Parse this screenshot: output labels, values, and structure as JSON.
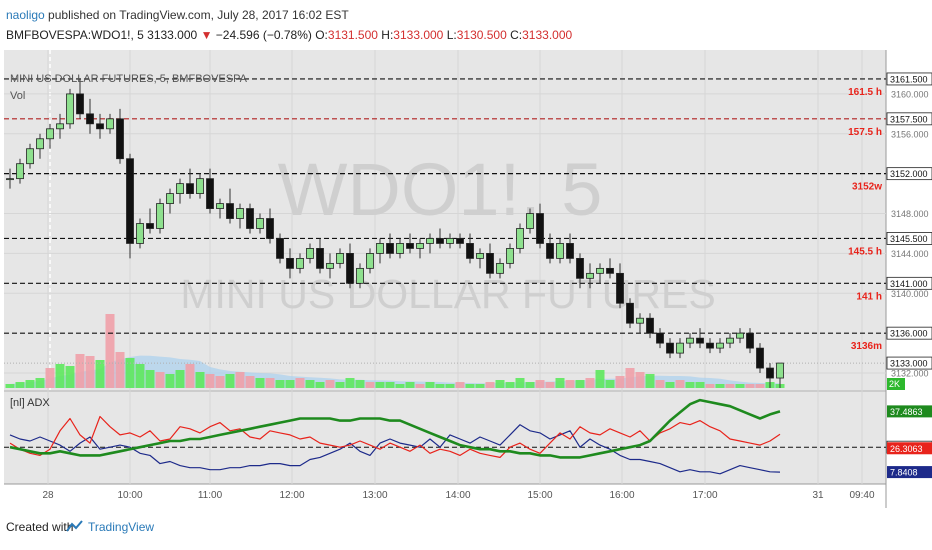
{
  "header": {
    "author": "naoligo",
    "published_text": "published on TradingView.com, July 28, 2017 16:02 EST",
    "symbol": "BMFBOVESPA:WDO1!, 5",
    "last": "3133.000",
    "change": "−24.596 (−0.78%)",
    "ohlc": {
      "o_label": "O:",
      "o": "3131.500",
      "h_label": "H:",
      "h": "3133.000",
      "l_label": "L:",
      "l": "3130.500",
      "c_label": "C:",
      "c": "3133.000"
    }
  },
  "legend": {
    "main_title": "MINI US DOLLAR FUTURES, 5, BMFBOVESPA",
    "vol_label": "Vol",
    "adx_label": "[nl] ADX"
  },
  "watermark": {
    "line1": "WDO1!, 5",
    "line2": "MINI US DOLLAR FUTURES"
  },
  "footer": {
    "created_with": "Created with",
    "brand": "TradingView"
  },
  "colors": {
    "up": "#8ee08e",
    "down": "#111111",
    "vol_up": "#5de85d",
    "vol_down": "#f0a0a8",
    "adx": "#1e8a1e",
    "di_plus": "#e8231b",
    "di_minus": "#1d2a8a",
    "level_red": "#e8231b",
    "pane_bg": "#e6e6e6"
  },
  "chart_data": [
    {
      "type": "candlestick",
      "title": "MINI US DOLLAR FUTURES, 5, BMFBOVESPA",
      "x_ticks": [
        "28",
        "10:00",
        "11:00",
        "12:00",
        "13:00",
        "14:00",
        "15:00",
        "16:00",
        "17:00",
        "31",
        "09:40"
      ],
      "ylim": [
        3130.5,
        3163.0
      ],
      "y_ticks": [
        "3160.000",
        "3156.000",
        "3148.000",
        "3144.000",
        "3140.000",
        "3132.000"
      ],
      "price_labels": [
        {
          "value": 3161.5,
          "text": "3161.500",
          "level": "161.5 h"
        },
        {
          "value": 3157.5,
          "text": "3157.500",
          "level": "157.5 h"
        },
        {
          "value": 3152.0,
          "text": "3152.000",
          "level": "3152w"
        },
        {
          "value": 3145.5,
          "text": "3145.500",
          "level": "145.5 h"
        },
        {
          "value": 3141.0,
          "text": "3141.000",
          "level": "141 h"
        },
        {
          "value": 3136.0,
          "text": "3136.000",
          "level": "3136m"
        },
        {
          "value": 3133.0,
          "text": "3133.000",
          "level": ""
        }
      ],
      "volume_tag": "2K",
      "candles": [
        [
          3151.5,
          3152.5,
          3150.5,
          3151.5
        ],
        [
          3151.5,
          3153.5,
          3151,
          3153
        ],
        [
          3153,
          3155,
          3152.5,
          3154.5
        ],
        [
          3154.5,
          3156,
          3153.5,
          3155.5
        ],
        [
          3155.5,
          3157,
          3154.5,
          3156.5
        ],
        [
          3156.5,
          3158,
          3155.5,
          3157
        ],
        [
          3157,
          3160.5,
          3156.5,
          3160
        ],
        [
          3160,
          3161.5,
          3157.5,
          3158
        ],
        [
          3158,
          3159.5,
          3156,
          3157
        ],
        [
          3157,
          3158,
          3155.5,
          3156.5
        ],
        [
          3156.5,
          3158,
          3156,
          3157.5
        ],
        [
          3157.5,
          3158.5,
          3153,
          3153.5
        ],
        [
          3153.5,
          3154,
          3143.5,
          3145
        ],
        [
          3145,
          3147.5,
          3144.5,
          3147
        ],
        [
          3147,
          3148.5,
          3146,
          3146.5
        ],
        [
          3146.5,
          3149.5,
          3146,
          3149
        ],
        [
          3149,
          3150.5,
          3148,
          3150
        ],
        [
          3150,
          3151.5,
          3149,
          3151
        ],
        [
          3151,
          3152.5,
          3149.5,
          3150
        ],
        [
          3150,
          3152,
          3149.5,
          3151.5
        ],
        [
          3151.5,
          3152.5,
          3148,
          3148.5
        ],
        [
          3148.5,
          3149.5,
          3147.5,
          3149
        ],
        [
          3149,
          3150.5,
          3147,
          3147.5
        ],
        [
          3147.5,
          3149,
          3146.5,
          3148.5
        ],
        [
          3148.5,
          3149,
          3146,
          3146.5
        ],
        [
          3146.5,
          3148,
          3146,
          3147.5
        ],
        [
          3147.5,
          3148.5,
          3145,
          3145.5
        ],
        [
          3145.5,
          3146,
          3143,
          3143.5
        ],
        [
          3143.5,
          3144.5,
          3141.5,
          3142.5
        ],
        [
          3142.5,
          3144,
          3142,
          3143.5
        ],
        [
          3143.5,
          3145,
          3143,
          3144.5
        ],
        [
          3144.5,
          3145.5,
          3142,
          3142.5
        ],
        [
          3142.5,
          3144,
          3141.5,
          3143
        ],
        [
          3143,
          3144.5,
          3142.5,
          3144
        ],
        [
          3144,
          3145,
          3140.5,
          3141
        ],
        [
          3141,
          3143,
          3140.5,
          3142.5
        ],
        [
          3142.5,
          3144.5,
          3142,
          3144
        ],
        [
          3144,
          3145.5,
          3143,
          3145
        ],
        [
          3145,
          3146,
          3143.5,
          3144
        ],
        [
          3144,
          3145.5,
          3143.5,
          3145
        ],
        [
          3145,
          3146,
          3144,
          3144.5
        ],
        [
          3144.5,
          3145.5,
          3143.5,
          3145
        ],
        [
          3145,
          3146,
          3144,
          3145.5
        ],
        [
          3145.5,
          3146.5,
          3144.5,
          3145
        ],
        [
          3145,
          3146,
          3144.5,
          3145.5
        ],
        [
          3145.5,
          3146,
          3144.5,
          3145
        ],
        [
          3145,
          3146,
          3143,
          3143.5
        ],
        [
          3143.5,
          3144.5,
          3142.5,
          3144
        ],
        [
          3144,
          3145,
          3141.5,
          3142
        ],
        [
          3142,
          3143.5,
          3141.5,
          3143
        ],
        [
          3143,
          3145,
          3142.5,
          3144.5
        ],
        [
          3144.5,
          3147,
          3144,
          3146.5
        ],
        [
          3146.5,
          3148.5,
          3146,
          3148
        ],
        [
          3148,
          3149,
          3144.5,
          3145
        ],
        [
          3145,
          3146,
          3143,
          3143.5
        ],
        [
          3143.5,
          3145.5,
          3143,
          3145
        ],
        [
          3145,
          3146,
          3143,
          3143.5
        ],
        [
          3143.5,
          3144,
          3140.5,
          3141.5
        ],
        [
          3141.5,
          3143,
          3140.5,
          3142
        ],
        [
          3142,
          3143,
          3141,
          3142.5
        ],
        [
          3142.5,
          3143.5,
          3141.5,
          3142
        ],
        [
          3142,
          3143,
          3138.5,
          3139
        ],
        [
          3139,
          3139.5,
          3136.5,
          3137
        ],
        [
          3137,
          3138,
          3136,
          3137.5
        ],
        [
          3137.5,
          3138,
          3135.5,
          3136
        ],
        [
          3136,
          3136.5,
          3134.5,
          3135
        ],
        [
          3135,
          3135.5,
          3133.5,
          3134
        ],
        [
          3134,
          3135.5,
          3133.5,
          3135
        ],
        [
          3135,
          3136,
          3134.5,
          3135.5
        ],
        [
          3135.5,
          3136.5,
          3134.5,
          3135
        ],
        [
          3135,
          3135.5,
          3134,
          3134.5
        ],
        [
          3134.5,
          3135.5,
          3134,
          3135
        ],
        [
          3135,
          3136,
          3134.5,
          3135.5
        ],
        [
          3135.5,
          3136.5,
          3135,
          3136
        ],
        [
          3136,
          3136.5,
          3134,
          3134.5
        ],
        [
          3134.5,
          3135,
          3132,
          3132.5
        ],
        [
          3132.5,
          3133,
          3130.5,
          3131.5
        ],
        [
          3131.5,
          3133,
          3130.5,
          3133
        ]
      ],
      "volumes": [
        [
          0.2,
          1
        ],
        [
          0.3,
          1
        ],
        [
          0.4,
          1
        ],
        [
          0.5,
          1
        ],
        [
          1.0,
          0
        ],
        [
          1.2,
          1
        ],
        [
          1.1,
          1
        ],
        [
          1.7,
          0
        ],
        [
          1.6,
          0
        ],
        [
          1.4,
          1
        ],
        [
          3.7,
          0
        ],
        [
          1.8,
          0
        ],
        [
          1.5,
          1
        ],
        [
          1.2,
          1
        ],
        [
          0.9,
          1
        ],
        [
          0.8,
          0
        ],
        [
          0.7,
          1
        ],
        [
          0.9,
          1
        ],
        [
          1.2,
          0
        ],
        [
          0.8,
          1
        ],
        [
          0.7,
          0
        ],
        [
          0.6,
          0
        ],
        [
          0.7,
          1
        ],
        [
          0.8,
          0
        ],
        [
          0.6,
          0
        ],
        [
          0.5,
          1
        ],
        [
          0.5,
          0
        ],
        [
          0.4,
          1
        ],
        [
          0.4,
          1
        ],
        [
          0.5,
          0
        ],
        [
          0.4,
          1
        ],
        [
          0.3,
          1
        ],
        [
          0.4,
          0
        ],
        [
          0.3,
          1
        ],
        [
          0.5,
          1
        ],
        [
          0.4,
          1
        ],
        [
          0.3,
          0
        ],
        [
          0.3,
          1
        ],
        [
          0.3,
          1
        ],
        [
          0.2,
          1
        ],
        [
          0.3,
          1
        ],
        [
          0.2,
          0
        ],
        [
          0.3,
          1
        ],
        [
          0.2,
          1
        ],
        [
          0.2,
          1
        ],
        [
          0.3,
          0
        ],
        [
          0.2,
          1
        ],
        [
          0.2,
          1
        ],
        [
          0.3,
          0
        ],
        [
          0.4,
          1
        ],
        [
          0.3,
          1
        ],
        [
          0.5,
          1
        ],
        [
          0.3,
          1
        ],
        [
          0.4,
          0
        ],
        [
          0.3,
          0
        ],
        [
          0.5,
          1
        ],
        [
          0.4,
          0
        ],
        [
          0.4,
          1
        ],
        [
          0.5,
          0
        ],
        [
          0.9,
          1
        ],
        [
          0.4,
          1
        ],
        [
          0.6,
          0
        ],
        [
          1.0,
          0
        ],
        [
          0.8,
          0
        ],
        [
          0.7,
          1
        ],
        [
          0.4,
          0
        ],
        [
          0.3,
          1
        ],
        [
          0.4,
          0
        ],
        [
          0.3,
          1
        ],
        [
          0.3,
          1
        ],
        [
          0.2,
          0
        ],
        [
          0.2,
          1
        ],
        [
          0.2,
          0
        ],
        [
          0.2,
          1
        ],
        [
          0.2,
          0
        ],
        [
          0.2,
          0
        ],
        [
          0.3,
          1
        ],
        [
          0.2,
          1
        ]
      ]
    },
    {
      "type": "line",
      "title": "[nl] ADX",
      "ylim": [
        3,
        45
      ],
      "reference_level": 20,
      "last_labels": [
        {
          "name": "ADX",
          "value": "37.4863"
        },
        {
          "name": "DI+",
          "value": "26.3063"
        },
        {
          "name": "DI−",
          "value": "7.8408"
        }
      ],
      "series": [
        {
          "name": "ADX",
          "values": [
            20,
            19,
            18,
            17,
            17,
            18,
            17,
            16,
            16,
            16,
            17,
            18,
            19,
            20,
            21,
            22,
            23,
            23,
            24,
            24,
            25,
            26,
            27,
            28,
            29,
            30,
            31,
            32,
            33,
            34,
            34,
            34,
            34,
            33,
            33,
            34,
            34,
            34,
            33,
            33,
            31,
            29,
            27,
            25,
            23,
            21,
            20,
            19,
            19,
            18,
            18,
            17,
            17,
            16,
            16,
            15,
            15,
            15,
            16,
            17,
            18,
            19,
            20,
            21,
            23,
            28,
            33,
            37,
            41,
            43,
            42,
            41,
            40,
            38,
            36,
            34,
            36,
            37.49
          ]
        },
        {
          "name": "DI+",
          "values": [
            22,
            19,
            17,
            16,
            19,
            28,
            34,
            26,
            22,
            35,
            30,
            26,
            27,
            25,
            28,
            23,
            24,
            30,
            29,
            27,
            30,
            32,
            28,
            29,
            25,
            24,
            28,
            27,
            26,
            24,
            25,
            22,
            21,
            20,
            21,
            23,
            21,
            19,
            22,
            20,
            18,
            21,
            17,
            19,
            18,
            16,
            19,
            17,
            16,
            15,
            20,
            22,
            19,
            17,
            22,
            27,
            24,
            30,
            27,
            26,
            29,
            27,
            25,
            28,
            23,
            27,
            29,
            32,
            31,
            33,
            30,
            28,
            24,
            23,
            22,
            21,
            23,
            26.31
          ]
        },
        {
          "name": "DI−",
          "values": [
            26,
            24,
            23,
            25,
            23,
            21,
            18,
            22,
            25,
            19,
            20,
            21,
            20,
            17,
            16,
            12,
            13,
            11,
            10,
            10,
            9,
            9,
            10,
            10,
            11,
            11,
            12,
            12,
            11,
            11,
            14,
            15,
            17,
            19,
            22,
            18,
            16,
            22,
            24,
            22,
            21,
            20,
            24,
            20,
            26,
            24,
            22,
            25,
            23,
            21,
            26,
            31,
            28,
            27,
            24,
            26,
            28,
            20,
            24,
            21,
            19,
            16,
            14,
            14,
            13,
            12,
            10,
            8,
            9,
            8,
            8,
            7,
            9,
            11,
            10,
            9,
            8,
            7.84
          ]
        }
      ]
    }
  ]
}
